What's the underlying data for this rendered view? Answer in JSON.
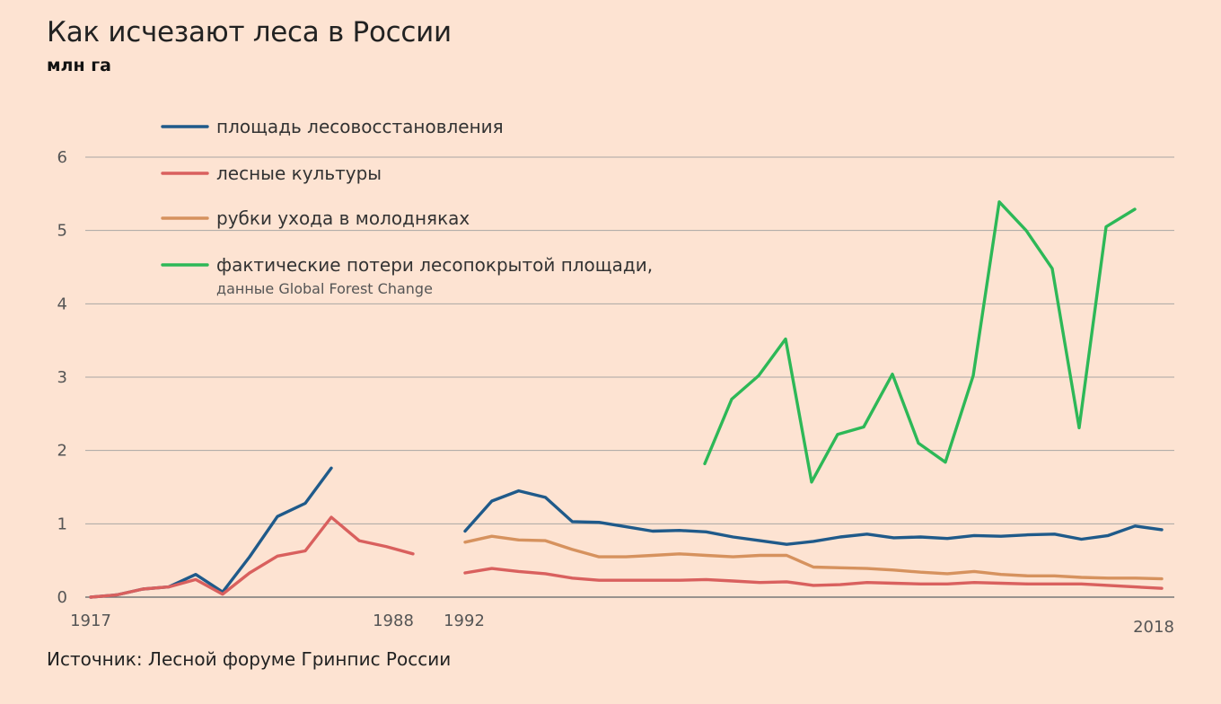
{
  "title": "Как исчезают леса в России",
  "subtitle": "млн га",
  "source": "Источник: Лесной форуме Гринпис России",
  "chart_data": {
    "type": "line",
    "ylim": [
      0,
      6
    ],
    "yticks": [
      "0",
      "1",
      "2",
      "3",
      "4",
      "5",
      "6"
    ],
    "grid": true,
    "legend_position": "top-left",
    "xtick_labels": [
      "1917",
      "1988",
      "1992",
      "2018"
    ],
    "series": [
      {
        "name": "площадь лесовосстановления",
        "color": "#1f5a8a",
        "segments": [
          [
            0.0,
            0.03,
            0.11,
            0.14,
            0.31,
            0.07,
            0.55,
            1.1,
            1.28,
            1.76
          ],
          [
            0.9,
            1.31,
            1.45,
            1.36,
            1.03,
            1.02,
            0.96,
            0.9,
            0.91,
            0.89,
            0.82,
            0.77,
            0.72,
            0.76,
            0.82,
            0.86,
            0.81,
            0.82,
            0.8,
            0.84,
            0.83,
            0.85,
            0.86,
            0.79,
            0.84,
            0.97,
            0.92
          ]
        ]
      },
      {
        "name": "лесные культуры",
        "color": "#d9605e",
        "segments": [
          [
            0.0,
            0.03,
            0.11,
            0.14,
            0.24,
            0.04,
            0.33,
            0.56,
            0.63,
            1.09,
            0.77,
            0.69,
            0.59
          ],
          [
            0.33,
            0.39,
            0.35,
            0.32,
            0.26,
            0.23,
            0.23,
            0.23,
            0.23,
            0.24,
            0.22,
            0.2,
            0.21,
            0.16,
            0.17,
            0.2,
            0.19,
            0.18,
            0.18,
            0.2,
            0.19,
            0.18,
            0.18,
            0.18,
            0.16,
            0.14,
            0.12
          ]
        ]
      },
      {
        "name": "рубки ухода в молодняках",
        "color": "#d6925e",
        "segments": [
          [
            0.75,
            0.83,
            0.78,
            0.77,
            0.65,
            0.55,
            0.55,
            0.57,
            0.59,
            0.57,
            0.55,
            0.57,
            0.57,
            0.41,
            0.4,
            0.39,
            0.37,
            0.34,
            0.32,
            0.35,
            0.31,
            0.29,
            0.29,
            0.27,
            0.26,
            0.26,
            0.25
          ]
        ]
      },
      {
        "name": "фактические потери лесопокрытой площади,",
        "note": "данные Global Forest Change",
        "color": "#2db857",
        "segments": [
          [
            1.82,
            2.7,
            3.02,
            3.52,
            1.57,
            2.22,
            2.32,
            3.04,
            2.1,
            1.84,
            3.02,
            5.39,
            5.0,
            4.48,
            2.31,
            5.05,
            5.29
          ]
        ]
      }
    ]
  }
}
